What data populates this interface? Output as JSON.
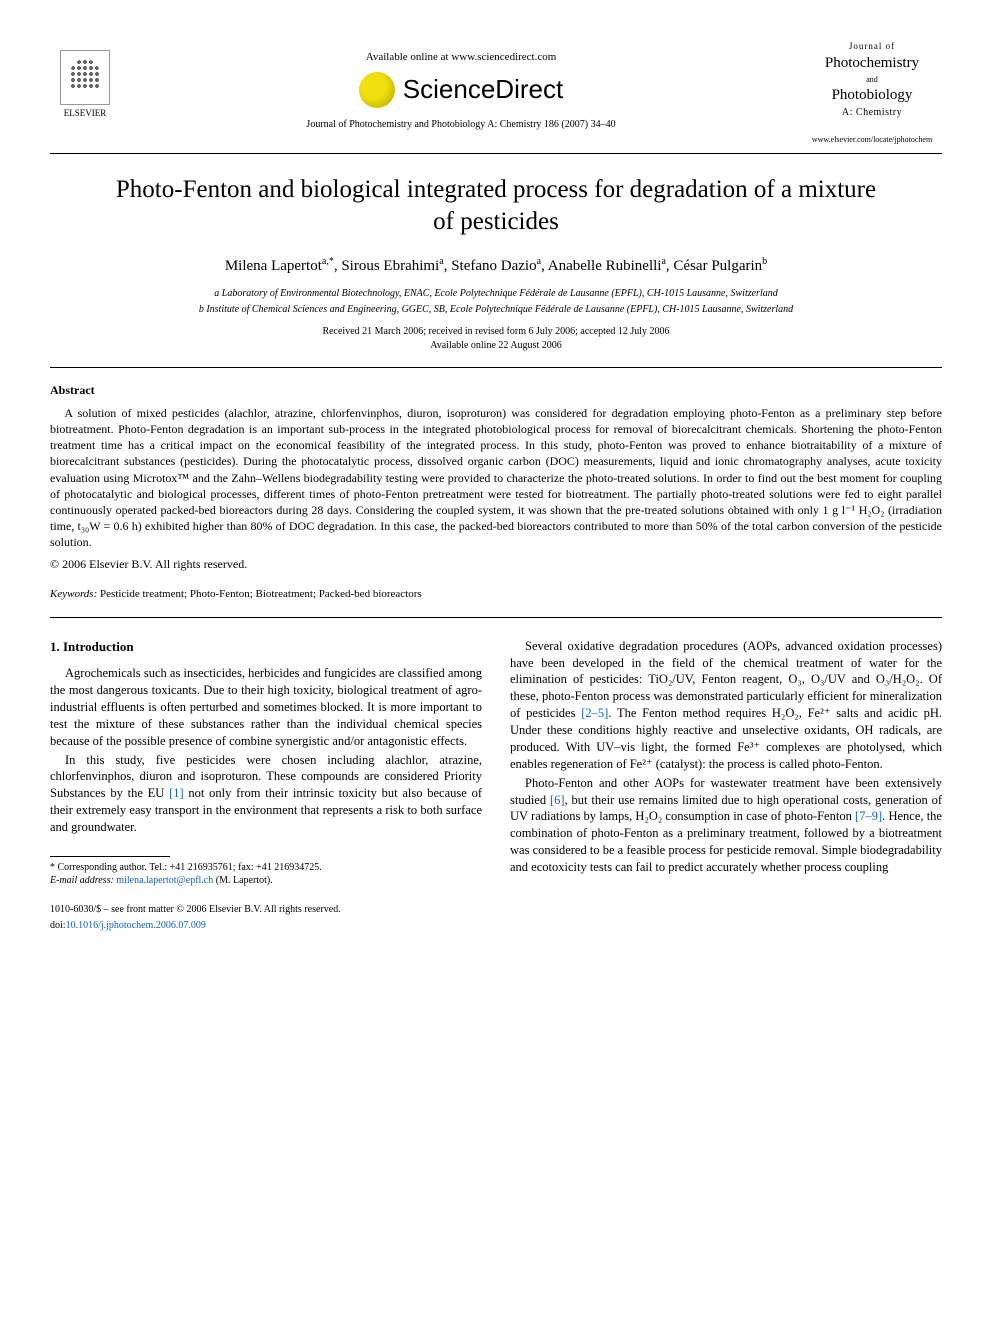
{
  "header": {
    "elsevier_label": "ELSEVIER",
    "available_online": "Available online at www.sciencedirect.com",
    "sciencedirect": "ScienceDirect",
    "journal_ref": "Journal of Photochemistry and Photobiology A: Chemistry 186 (2007) 34–40",
    "journal_box": {
      "line1": "Journal of",
      "photo1": "Photochemistry",
      "and": "and",
      "photo2": "Photobiology",
      "sub": "A: Chemistry",
      "url": "www.elsevier.com/locate/jphotochem"
    }
  },
  "title": "Photo-Fenton and biological integrated process for degradation of a mixture of pesticides",
  "authors_html": "Milena Lapertot<sup>a,*</sup>, Sirous Ebrahimi<sup>a</sup>, Stefano Dazio<sup>a</sup>, Anabelle Rubinelli<sup>a</sup>, César Pulgarin<sup>b</sup>",
  "affiliations": [
    "a Laboratory of Environmental Biotechnology, ENAC, Ecole Polytechnique Fédérale de Lausanne (EPFL), CH-1015 Lausanne, Switzerland",
    "b Institute of Chemical Sciences and Engineering, GGEC, SB, Ecole Polytechnique Fédérale de Lausanne (EPFL), CH-1015 Lausanne, Switzerland"
  ],
  "dates": "Received 21 March 2006; received in revised form 6 July 2006; accepted 12 July 2006",
  "available": "Available online 22 August 2006",
  "abstract_head": "Abstract",
  "abstract_body": "A solution of mixed pesticides (alachlor, atrazine, chlorfenvinphos, diuron, isoproturon) was considered for degradation employing photo-Fenton as a preliminary step before biotreatment. Photo-Fenton degradation is an important sub-process in the integrated photobiological process for removal of biorecalcitrant chemicals. Shortening the photo-Fenton treatment time has a critical impact on the economical feasibility of the integrated process. In this study, photo-Fenton was proved to enhance biotraitability of a mixture of biorecalcitrant substances (pesticides). During the photocatalytic process, dissolved organic carbon (DOC) measurements, liquid and ionic chromatography analyses, acute toxicity evaluation using Microtox™ and the Zahn–Wellens biodegradability testing were provided to characterize the photo-treated solutions. In order to find out the best moment for coupling of photocatalytic and biological processes, different times of photo-Fenton pretreatment were tested for biotreatment. The partially photo-treated solutions were fed to eight parallel continuously operated packed-bed bioreactors during 28 days. Considering the coupled system, it was shown that the pre-treated solutions obtained with only 1 g l⁻¹ H₂O₂ (irradiation time, t₃₀W = 0.6 h) exhibited higher than 80% of DOC degradation. In this case, the packed-bed bioreactors contributed to more than 50% of the total carbon conversion of the pesticide solution.",
  "copyright": "© 2006 Elsevier B.V. All rights reserved.",
  "keywords_label": "Keywords:",
  "keywords": "Pesticide treatment; Photo-Fenton; Biotreatment; Packed-bed bioreactors",
  "section1_head": "1. Introduction",
  "col_left": {
    "p1": "Agrochemicals such as insecticides, herbicides and fungicides are classified among the most dangerous toxicants. Due to their high toxicity, biological treatment of agro-industrial effluents is often perturbed and sometimes blocked. It is more important to test the mixture of these substances rather than the individual chemical species because of the possible presence of combine synergistic and/or antagonistic effects.",
    "p2_a": "In this study, five pesticides were chosen including alachlor, atrazine, chlorfenvinphos, diuron and isoproturon. These compounds are considered Priority Substances by the EU ",
    "p2_ref": "[1]",
    "p2_b": " not only from their intrinsic toxicity but also because of their extremely easy transport in the environment that represents a risk to both surface and groundwater."
  },
  "col_right": {
    "p1_a": "Several oxidative degradation procedures (AOPs, advanced oxidation processes) have been developed in the field of the chemical treatment of water for the elimination of pesticides: TiO₂/UV, Fenton reagent, O₃, O₃/UV and O₃/H₂O₂. Of these, photo-Fenton process was demonstrated particularly efficient for mineralization of pesticides ",
    "p1_ref": "[2–5]",
    "p1_b": ". The Fenton method requires H₂O₂, Fe²⁺ salts and acidic pH. Under these conditions highly reactive and unselective oxidants, OH radicals, are produced. With UV–vis light, the formed Fe³⁺ complexes are photolysed, which enables regeneration of Fe²⁺ (catalyst): the process is called photo-Fenton.",
    "p2_a": "Photo-Fenton and other AOPs for wastewater treatment have been extensively studied ",
    "p2_ref1": "[6]",
    "p2_b": ", but their use remains limited due to high operational costs, generation of UV radiations by lamps, H₂O₂ consumption in case of photo-Fenton ",
    "p2_ref2": "[7–9]",
    "p2_c": ". Hence, the combination of photo-Fenton as a preliminary treatment, followed by a biotreatment was considered to be a feasible process for pesticide removal. Simple biodegradability and ecotoxicity tests can fail to predict accurately whether process coupling"
  },
  "footnote": {
    "corr": "* Corresponding author. Tel.: +41 216935761; fax: +41 216934725.",
    "email_label": "E-mail address:",
    "email": "milena.lapertot@epfl.ch",
    "email_tail": " (M. Lapertot)."
  },
  "bottom": {
    "issn": "1010-6030/$ – see front matter © 2006 Elsevier B.V. All rights reserved.",
    "doi_label": "doi:",
    "doi": "10.1016/j.jphotochem.2006.07.009"
  },
  "colors": {
    "link": "#1060c0",
    "text": "#000000",
    "bg": "#ffffff"
  }
}
